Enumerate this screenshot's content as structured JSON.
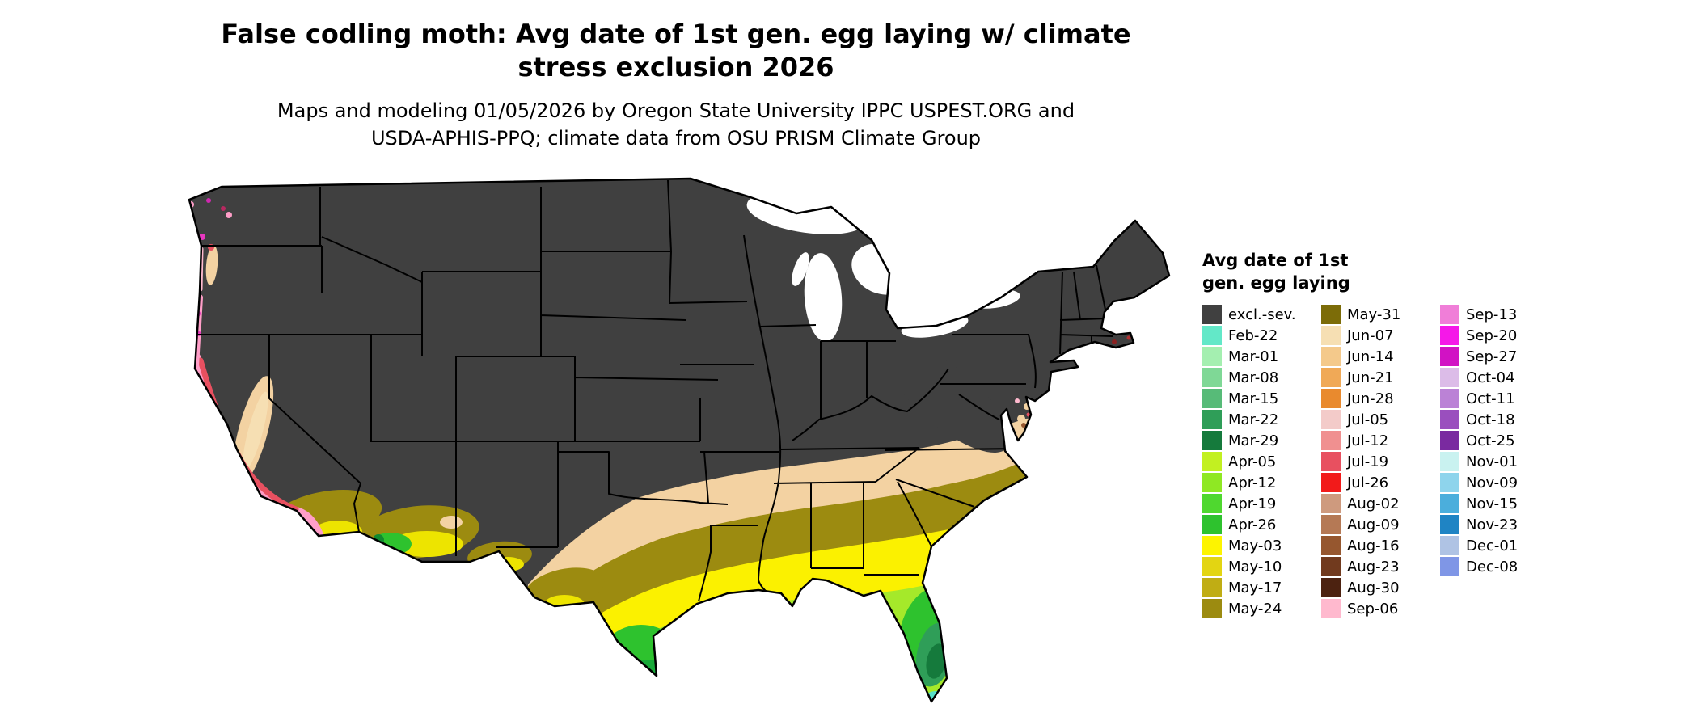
{
  "header": {
    "title_line1": "False codling moth: Avg date of 1st gen. egg laying w/ climate",
    "title_line2": "stress exclusion 2026",
    "subtitle_line1": "Maps and modeling 01/05/2026 by Oregon State University IPPC USPEST.ORG and",
    "subtitle_line2": "USDA-APHIS-PPQ; climate data from OSU PRISM Climate Group"
  },
  "legend": {
    "title_line1": "Avg date of 1st",
    "title_line2": "gen. egg laying",
    "columns": [
      {
        "items": [
          {
            "label": "excl.-sev.",
            "color": "#404040"
          },
          {
            "label": "Feb-22",
            "color": "#63E8C8"
          },
          {
            "label": "Mar-01",
            "color": "#A4EFB0"
          },
          {
            "label": "Mar-08",
            "color": "#7FD896"
          },
          {
            "label": "Mar-15",
            "color": "#57BB78"
          },
          {
            "label": "Mar-22",
            "color": "#2F9E58"
          },
          {
            "label": "Mar-29",
            "color": "#157A3C"
          },
          {
            "label": "Apr-05",
            "color": "#C2F021"
          },
          {
            "label": "Apr-12",
            "color": "#8FE823"
          },
          {
            "label": "Apr-19",
            "color": "#4FD82F"
          },
          {
            "label": "Apr-26",
            "color": "#2EC22E"
          },
          {
            "label": "May-03",
            "color": "#FDF400"
          },
          {
            "label": "May-10",
            "color": "#E3D512"
          },
          {
            "label": "May-17",
            "color": "#C0AD14"
          },
          {
            "label": "May-24",
            "color": "#9C8B10"
          }
        ]
      },
      {
        "items": [
          {
            "label": "May-31",
            "color": "#7C6C08"
          },
          {
            "label": "Jun-07",
            "color": "#F6DFB3"
          },
          {
            "label": "Jun-14",
            "color": "#F4C98B"
          },
          {
            "label": "Jun-21",
            "color": "#F0A957"
          },
          {
            "label": "Jun-28",
            "color": "#E98A2E"
          },
          {
            "label": "Jul-05",
            "color": "#F3CBC9"
          },
          {
            "label": "Jul-12",
            "color": "#F09090"
          },
          {
            "label": "Jul-19",
            "color": "#E85060"
          },
          {
            "label": "Jul-26",
            "color": "#F21A1A"
          },
          {
            "label": "Aug-02",
            "color": "#CE9A7E"
          },
          {
            "label": "Aug-09",
            "color": "#B57955"
          },
          {
            "label": "Aug-16",
            "color": "#96572F"
          },
          {
            "label": "Aug-23",
            "color": "#713A1E"
          },
          {
            "label": "Aug-30",
            "color": "#4C2210"
          },
          {
            "label": "Sep-06",
            "color": "#FFB9CE"
          }
        ]
      },
      {
        "items": [
          {
            "label": "Sep-13",
            "color": "#F07ED8"
          },
          {
            "label": "Sep-20",
            "color": "#F518E8"
          },
          {
            "label": "Sep-27",
            "color": "#D112C4"
          },
          {
            "label": "Oct-04",
            "color": "#DCBCE8"
          },
          {
            "label": "Oct-11",
            "color": "#BB82D6"
          },
          {
            "label": "Oct-18",
            "color": "#9A4FBE"
          },
          {
            "label": "Oct-25",
            "color": "#7A2AA0"
          },
          {
            "label": "Nov-01",
            "color": "#C9F2F0"
          },
          {
            "label": "Nov-09",
            "color": "#8ED4EC"
          },
          {
            "label": "Nov-15",
            "color": "#4BAEDC"
          },
          {
            "label": "Nov-23",
            "color": "#1F84C4"
          },
          {
            "label": "Dec-01",
            "color": "#AFC3E4"
          },
          {
            "label": "Dec-08",
            "color": "#7F96E6"
          }
        ]
      }
    ]
  }
}
